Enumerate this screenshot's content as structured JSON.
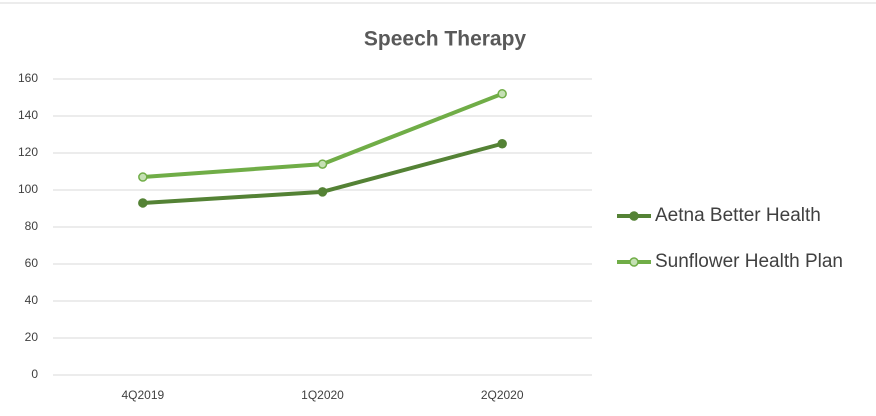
{
  "chart_data": {
    "type": "line",
    "title": "Speech Therapy",
    "categories": [
      "4Q2019",
      "1Q2020",
      "2Q2020"
    ],
    "series": [
      {
        "name": "Aetna Better Health",
        "color": "#548235",
        "values": [
          93,
          99,
          125
        ]
      },
      {
        "name": "Sunflower Health Plan",
        "color": "#70ad47",
        "values": [
          107,
          114,
          152
        ]
      }
    ],
    "ylim": [
      0,
      160
    ],
    "yticks": [
      0,
      20,
      40,
      60,
      80,
      100,
      120,
      140,
      160
    ],
    "grid": true,
    "legend": "right"
  }
}
